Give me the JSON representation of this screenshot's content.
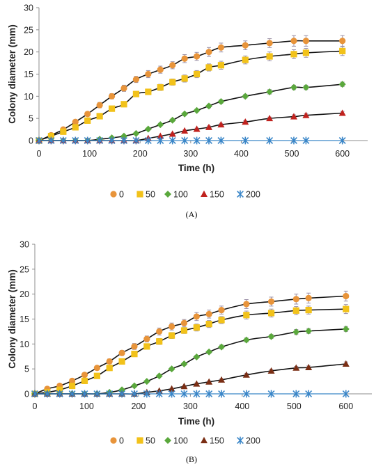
{
  "chart_data": [
    {
      "type": "scatter",
      "panel_label": "(A)",
      "xlabel": "Time (h)",
      "ylabel": "Colony diameter (mm)",
      "xlim": [
        0,
        650
      ],
      "ylim": [
        0,
        30
      ],
      "xticks": [
        "0",
        "100",
        "200",
        "300",
        "400",
        "500",
        "600"
      ],
      "yticks": [
        "0",
        "5",
        "10",
        "15",
        "20",
        "25",
        "30"
      ],
      "grid": false,
      "legend_position": "bottom",
      "error_bars": true,
      "fitted_curves": true,
      "series": [
        {
          "name": "0",
          "color": "#e8943a",
          "marker": "circle",
          "x": [
            0,
            24,
            48,
            72,
            96,
            120,
            144,
            168,
            192,
            216,
            240,
            264,
            288,
            312,
            336,
            360,
            408,
            456,
            504,
            528,
            600
          ],
          "y": [
            0,
            1.2,
            2.5,
            4.2,
            6,
            8,
            10,
            11.8,
            13.8,
            15,
            16,
            17,
            18.5,
            19,
            20,
            21,
            21.5,
            22,
            22.5,
            22.5,
            22.5
          ],
          "err": [
            0,
            0.3,
            0.4,
            0.5,
            0.5,
            0.6,
            0.6,
            0.7,
            0.7,
            0.8,
            0.8,
            0.8,
            0.9,
            0.9,
            1,
            1,
            1,
            1,
            1.2,
            1.2,
            1.2
          ]
        },
        {
          "name": "50",
          "color": "#f2c21a",
          "marker": "square",
          "x": [
            0,
            24,
            48,
            72,
            96,
            120,
            144,
            168,
            192,
            216,
            240,
            264,
            288,
            312,
            336,
            360,
            408,
            456,
            504,
            528,
            600
          ],
          "y": [
            0,
            1,
            2,
            3,
            4.5,
            5.5,
            7.2,
            8.2,
            10.5,
            11,
            12,
            13.2,
            14,
            15,
            16.5,
            17,
            18.2,
            19,
            19.5,
            19.8,
            20.2
          ],
          "err": [
            0,
            0.2,
            0.3,
            0.4,
            0.4,
            0.5,
            0.5,
            0.5,
            0.6,
            0.6,
            0.7,
            0.7,
            0.8,
            0.8,
            0.8,
            0.9,
            0.9,
            1,
            1,
            1,
            1
          ]
        },
        {
          "name": "100",
          "color": "#5aa83c",
          "marker": "diamond",
          "x": [
            0,
            24,
            48,
            72,
            96,
            120,
            144,
            168,
            192,
            216,
            240,
            264,
            288,
            312,
            336,
            360,
            408,
            456,
            504,
            528,
            600
          ],
          "y": [
            0,
            0,
            0,
            0,
            0,
            0.3,
            0.6,
            1,
            1.6,
            2.6,
            3.6,
            4.6,
            6,
            6.8,
            7.8,
            8.8,
            10,
            11,
            12,
            12,
            12.7
          ],
          "err": [
            0,
            0,
            0,
            0,
            0,
            0.1,
            0.1,
            0.2,
            0.2,
            0.2,
            0.3,
            0.3,
            0.3,
            0.3,
            0.4,
            0.4,
            0.4,
            0.5,
            0.5,
            0.5,
            0.5
          ]
        },
        {
          "name": "150",
          "color": "#c0221e",
          "marker": "triangle",
          "x": [
            0,
            24,
            48,
            72,
            96,
            120,
            144,
            168,
            192,
            216,
            240,
            264,
            288,
            312,
            336,
            360,
            408,
            456,
            504,
            528,
            600
          ],
          "y": [
            0,
            0,
            0,
            0,
            0,
            0,
            0,
            0,
            0,
            0.5,
            1,
            1.5,
            2.2,
            2.6,
            3,
            3.6,
            4.2,
            5,
            5.4,
            5.7,
            6.2
          ],
          "err": [
            0,
            0,
            0,
            0,
            0,
            0,
            0,
            0,
            0,
            0.1,
            0.1,
            0.2,
            0.2,
            0.2,
            0.3,
            0.3,
            0.3,
            0.3,
            0.4,
            0.4,
            0.4
          ]
        },
        {
          "name": "200",
          "color": "#3a86c8",
          "marker": "asterisk",
          "x": [
            0,
            24,
            48,
            72,
            96,
            120,
            144,
            168,
            192,
            216,
            240,
            264,
            288,
            312,
            336,
            360,
            408,
            456,
            504,
            528,
            600
          ],
          "y": [
            0,
            0,
            0,
            0,
            0,
            0,
            0,
            0,
            0,
            0,
            0,
            0,
            0,
            0,
            0,
            0,
            0,
            0,
            0,
            0,
            0
          ],
          "err": [
            0,
            0,
            0,
            0,
            0,
            0,
            0,
            0,
            0,
            0,
            0,
            0,
            0,
            0,
            0,
            0,
            0,
            0,
            0,
            0,
            0
          ]
        }
      ]
    },
    {
      "type": "scatter",
      "panel_label": "(B)",
      "xlabel": "Time (h)",
      "ylabel": "Colony diameter (mm)",
      "xlim": [
        0,
        650
      ],
      "ylim": [
        0,
        30
      ],
      "xticks": [
        "0",
        "100",
        "200",
        "300",
        "400",
        "500",
        "600"
      ],
      "yticks": [
        "0",
        "5",
        "10",
        "15",
        "20",
        "25",
        "30"
      ],
      "grid": false,
      "legend_position": "bottom",
      "error_bars": true,
      "fitted_curves": true,
      "series": [
        {
          "name": "0",
          "color": "#e8943a",
          "marker": "circle",
          "x": [
            0,
            24,
            48,
            72,
            96,
            120,
            144,
            168,
            192,
            216,
            240,
            264,
            288,
            312,
            336,
            360,
            408,
            456,
            504,
            528,
            600
          ],
          "y": [
            0,
            1,
            1.6,
            2.6,
            3.8,
            5.2,
            6.5,
            8.2,
            9.5,
            11,
            12.5,
            13.5,
            14.2,
            15.5,
            16,
            16.8,
            18,
            18.5,
            19,
            19.2,
            19.6
          ],
          "err": [
            0,
            0.2,
            0.3,
            0.3,
            0.4,
            0.4,
            0.5,
            0.5,
            0.6,
            0.6,
            0.7,
            0.7,
            0.7,
            0.8,
            0.8,
            0.8,
            0.9,
            0.9,
            1,
            1,
            1
          ]
        },
        {
          "name": "50",
          "color": "#f2c21a",
          "marker": "square",
          "x": [
            0,
            24,
            48,
            72,
            96,
            120,
            144,
            168,
            192,
            216,
            240,
            264,
            288,
            312,
            336,
            360,
            408,
            456,
            504,
            528,
            600
          ],
          "y": [
            0,
            0.3,
            0.8,
            1.6,
            2.6,
            3.6,
            5.2,
            6.5,
            8,
            9.5,
            10.5,
            11.7,
            12.7,
            13.3,
            14,
            14.8,
            15.8,
            16.2,
            16.7,
            16.8,
            17
          ],
          "err": [
            0,
            0.1,
            0.2,
            0.2,
            0.3,
            0.3,
            0.4,
            0.4,
            0.5,
            0.5,
            0.6,
            0.6,
            0.6,
            0.7,
            0.7,
            0.7,
            0.8,
            0.8,
            0.8,
            0.8,
            0.9
          ]
        },
        {
          "name": "100",
          "color": "#5aa83c",
          "marker": "diamond",
          "x": [
            0,
            24,
            48,
            72,
            96,
            120,
            144,
            168,
            192,
            216,
            240,
            264,
            288,
            312,
            336,
            360,
            408,
            456,
            504,
            528,
            600
          ],
          "y": [
            0,
            0,
            0,
            0,
            0,
            0,
            0.3,
            0.8,
            1.6,
            2.5,
            3.6,
            5,
            6,
            7.4,
            8.4,
            9.4,
            10.8,
            11.5,
            12.4,
            12.6,
            13
          ],
          "err": [
            0,
            0,
            0,
            0,
            0,
            0,
            0.1,
            0.1,
            0.2,
            0.2,
            0.2,
            0.3,
            0.3,
            0.3,
            0.3,
            0.4,
            0.4,
            0.4,
            0.5,
            0.5,
            0.5
          ]
        },
        {
          "name": "150",
          "color": "#7a2e14",
          "marker": "triangle",
          "x": [
            0,
            24,
            48,
            72,
            96,
            120,
            144,
            168,
            192,
            216,
            240,
            264,
            288,
            312,
            336,
            360,
            408,
            456,
            504,
            528,
            600
          ],
          "y": [
            0,
            0,
            0,
            0,
            0,
            0,
            0,
            0,
            0,
            0.3,
            0.6,
            1,
            1.5,
            2,
            2.4,
            2.8,
            3.8,
            4.6,
            5.2,
            5.3,
            6
          ],
          "err": [
            0,
            0,
            0,
            0,
            0,
            0,
            0,
            0,
            0,
            0.1,
            0.1,
            0.1,
            0.2,
            0.2,
            0.2,
            0.2,
            0.3,
            0.3,
            0.3,
            0.3,
            0.4
          ]
        },
        {
          "name": "200",
          "color": "#3a86c8",
          "marker": "asterisk",
          "x": [
            0,
            24,
            48,
            72,
            96,
            120,
            144,
            168,
            192,
            216,
            240,
            264,
            288,
            312,
            336,
            360,
            408,
            456,
            504,
            528,
            600
          ],
          "y": [
            0,
            0,
            0,
            0,
            0,
            0,
            0,
            0,
            0,
            0,
            0,
            0,
            0,
            0,
            0,
            0,
            0,
            0,
            0,
            0,
            0
          ],
          "err": [
            0,
            0,
            0,
            0,
            0,
            0,
            0,
            0,
            0,
            0,
            0,
            0,
            0,
            0,
            0,
            0,
            0,
            0,
            0,
            0,
            0
          ]
        }
      ]
    }
  ]
}
